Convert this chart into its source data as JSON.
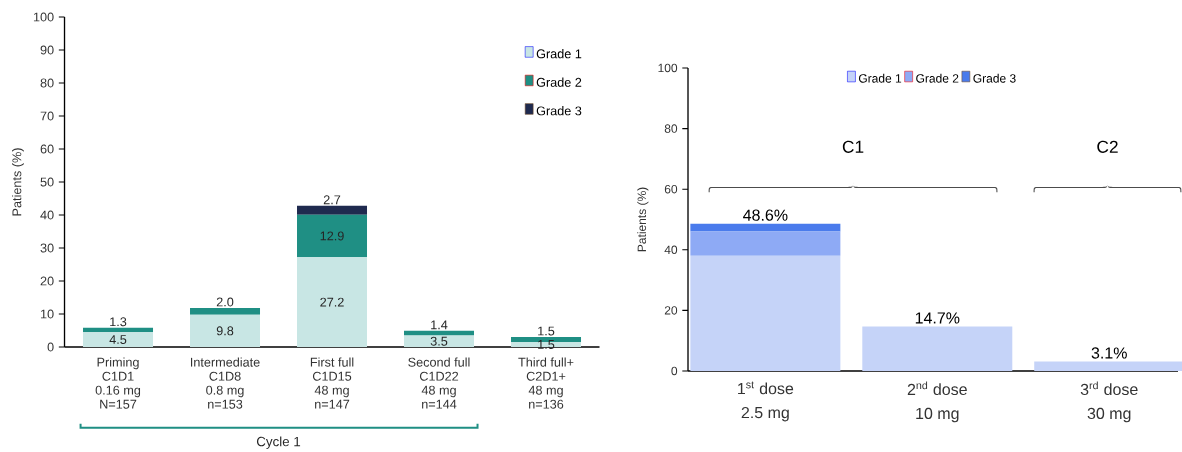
{
  "chart_data": [
    {
      "type": "bar",
      "stacked": true,
      "ylabel": "Patients (%)",
      "categories": [
        "Priming\nC1D1\n0.16 mg\nN=157",
        "Intermediate\nC1D8\n0.8 mg\nn=153",
        "First full\nC1D15\n48 mg\nn=147",
        "Second full\nC1D22\n48 mg\nn=144",
        "Third full+\nC2D1+\n48 mg\nn=136"
      ],
      "series": [
        {
          "name": "Grade 1",
          "color": "#c8e6e4",
          "values": [
            4.5,
            9.8,
            27.2,
            3.5,
            1.5
          ],
          "value_labels": [
            "4.5",
            "9.8",
            "27.2",
            "3.5",
            "1.5"
          ]
        },
        {
          "name": "Grade 2",
          "color": "#1f8f84",
          "values": [
            1.3,
            2.0,
            12.9,
            1.4,
            1.5
          ],
          "value_labels": [
            "1.3",
            "2.0",
            "12.9",
            "1.4",
            "1.5"
          ]
        },
        {
          "name": "Grade 3",
          "color": "#1f2a4f",
          "values": [
            0,
            0,
            2.7,
            0,
            0
          ],
          "value_labels": [
            null,
            null,
            "2.7",
            null,
            null
          ]
        }
      ],
      "ylim": [
        0,
        100
      ],
      "yticks": [
        0,
        10,
        20,
        30,
        40,
        50,
        60,
        70,
        80,
        90,
        100
      ],
      "legend": "top right",
      "annotations": [
        "Cycle 1"
      ]
    },
    {
      "type": "bar",
      "stacked": true,
      "ylabel": "Patients (%)",
      "categories": [
        "1$^{st}$ dose\n2.5 mg",
        "2$^{nd}$ dose\n10 mg",
        "3$^{rd}$ dose\n30 mg"
      ],
      "series": [
        {
          "name": "Grade 1",
          "color": "#c5d3f8",
          "values": [
            38,
            14.7,
            3.1
          ]
        },
        {
          "name": "Grade 2",
          "color": "#8eaaf5",
          "values": [
            8,
            0,
            0
          ]
        },
        {
          "name": "Grade 3",
          "color": "#4a7bec",
          "values": [
            2.6,
            0,
            0
          ]
        }
      ],
      "totals": [
        "48.6%",
        "14.7%",
        "3.1%"
      ],
      "ylim": [
        0,
        100
      ],
      "yticks": [
        0,
        20,
        40,
        60,
        80,
        100
      ],
      "legend": "top",
      "annotations": [
        "C1",
        "C2"
      ]
    }
  ]
}
